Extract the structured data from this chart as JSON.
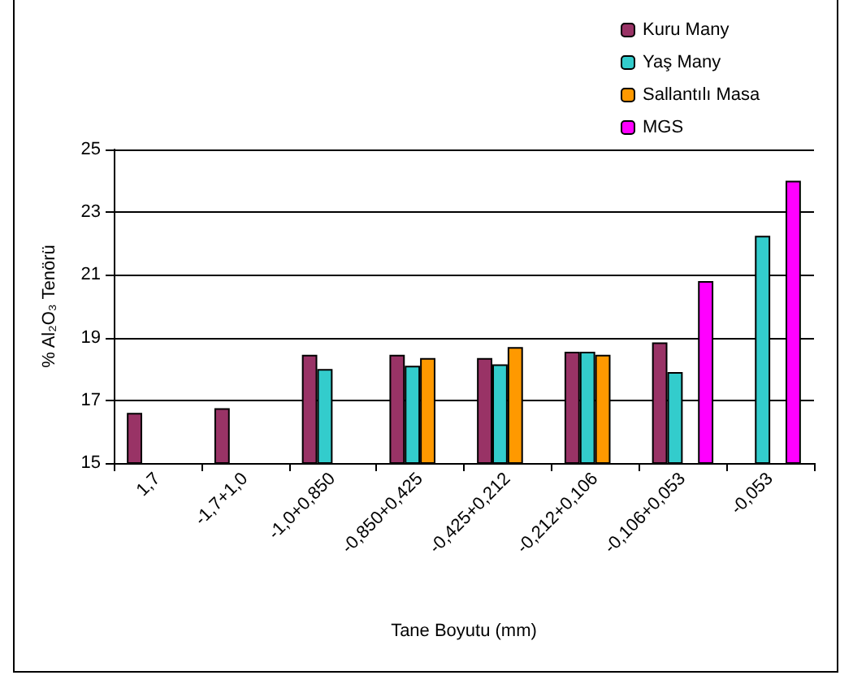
{
  "chart_data": {
    "type": "bar",
    "xlabel": "Tane Boyutu (mm)",
    "ylabel": "% Al₂O₃ Tenörü",
    "categories": [
      "1,7",
      "-1,7+1,0",
      "-1,0+0,850",
      "-0,850+0,425",
      "-0,425+0,212",
      "-0,212+0,106",
      "-0,106+0,053",
      "-0,053"
    ],
    "series": [
      {
        "name": "Kuru Many",
        "color": "#993366",
        "values": [
          16.6,
          16.75,
          18.45,
          18.45,
          18.35,
          18.55,
          18.85,
          null
        ]
      },
      {
        "name": "Yaş Many",
        "color": "#33cccc",
        "values": [
          null,
          null,
          18.0,
          18.1,
          18.15,
          18.55,
          17.9,
          22.25
        ]
      },
      {
        "name": "Sallantılı Masa",
        "color": "#ff9900",
        "values": [
          null,
          null,
          null,
          18.35,
          18.7,
          18.45,
          null,
          null
        ]
      },
      {
        "name": "MGS",
        "color": "#ff00ff",
        "values": [
          null,
          null,
          null,
          null,
          null,
          null,
          20.8,
          24.0
        ]
      }
    ],
    "ylim": [
      15,
      25
    ],
    "yticks": [
      15,
      17,
      19,
      21,
      23,
      25
    ],
    "grid": "y",
    "legend": "top right"
  }
}
